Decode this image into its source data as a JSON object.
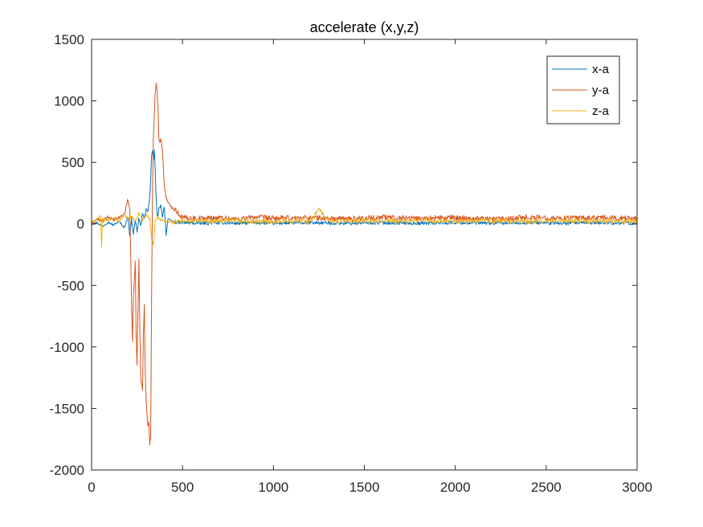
{
  "chart_data": {
    "type": "line",
    "title": "accelerate (x,y,z)",
    "xlabel": "",
    "ylabel": "",
    "xlim": [
      0,
      3000
    ],
    "ylim": [
      -2000,
      1500
    ],
    "xticks": [
      0,
      500,
      1000,
      1500,
      2000,
      2500,
      3000
    ],
    "yticks": [
      -2000,
      -1500,
      -1000,
      -500,
      0,
      500,
      1000,
      1500
    ],
    "grid": false,
    "legend_position": "top-right",
    "series": [
      {
        "name": "x-a",
        "color": "#0072BD",
        "x": [
          0,
          30,
          60,
          90,
          120,
          150,
          180,
          200,
          210,
          220,
          230,
          240,
          250,
          260,
          270,
          280,
          290,
          300,
          310,
          320,
          325,
          330,
          335,
          340,
          345,
          350,
          355,
          360,
          365,
          370,
          380,
          390,
          400,
          410,
          420,
          450,
          500,
          600,
          700,
          800,
          900,
          1000,
          1200,
          1400,
          1600,
          1800,
          2000,
          2200,
          2400,
          2600,
          2800,
          3000
        ],
        "y": [
          0,
          10,
          -20,
          15,
          -10,
          20,
          -30,
          60,
          -100,
          40,
          -80,
          30,
          -60,
          50,
          -20,
          80,
          40,
          120,
          100,
          220,
          380,
          560,
          590,
          520,
          600,
          430,
          200,
          80,
          60,
          120,
          150,
          60,
          140,
          -90,
          40,
          15,
          10,
          5,
          10,
          5,
          10,
          5,
          10,
          5,
          10,
          5,
          10,
          5,
          10,
          5,
          10,
          5
        ]
      },
      {
        "name": "y-a",
        "color": "#D95319",
        "x": [
          0,
          30,
          60,
          90,
          120,
          150,
          180,
          200,
          210,
          215,
          220,
          225,
          230,
          240,
          245,
          250,
          255,
          260,
          265,
          270,
          280,
          285,
          290,
          295,
          300,
          305,
          310,
          315,
          320,
          325,
          330,
          335,
          340,
          345,
          350,
          355,
          360,
          365,
          370,
          375,
          380,
          390,
          400,
          410,
          420,
          440,
          460,
          480,
          500,
          600,
          700,
          800,
          900,
          1000,
          1200,
          1400,
          1600,
          1800,
          2000,
          2200,
          2400,
          2600,
          2800,
          3000
        ],
        "y": [
          0,
          40,
          20,
          60,
          30,
          50,
          80,
          200,
          120,
          -250,
          -700,
          -950,
          -600,
          -310,
          -900,
          -1150,
          -700,
          -300,
          -800,
          -1250,
          -1350,
          -900,
          -650,
          -1200,
          -1450,
          -1550,
          -1650,
          -1600,
          -1800,
          -1700,
          -600,
          300,
          700,
          900,
          1050,
          1150,
          1100,
          950,
          700,
          650,
          700,
          600,
          300,
          220,
          170,
          140,
          120,
          80,
          50,
          45,
          50,
          40,
          55,
          45,
          50,
          40,
          55,
          45,
          50,
          40,
          55,
          45,
          50,
          45
        ]
      },
      {
        "name": "z-a",
        "color": "#EDB120",
        "x": [
          0,
          30,
          50,
          55,
          60,
          90,
          120,
          150,
          180,
          200,
          220,
          240,
          260,
          280,
          300,
          320,
          330,
          340,
          350,
          360,
          380,
          400,
          450,
          500,
          600,
          700,
          800,
          900,
          1000,
          1100,
          1200,
          1250,
          1300,
          1400,
          1600,
          1800,
          2000,
          2200,
          2400,
          2600,
          2800,
          3000
        ],
        "y": [
          10,
          40,
          60,
          -200,
          40,
          30,
          50,
          20,
          80,
          40,
          60,
          20,
          90,
          30,
          70,
          40,
          -120,
          -170,
          20,
          60,
          30,
          20,
          15,
          20,
          25,
          20,
          25,
          15,
          20,
          25,
          20,
          120,
          20,
          25,
          20,
          25,
          20,
          25,
          20,
          25,
          20,
          25
        ]
      }
    ]
  }
}
